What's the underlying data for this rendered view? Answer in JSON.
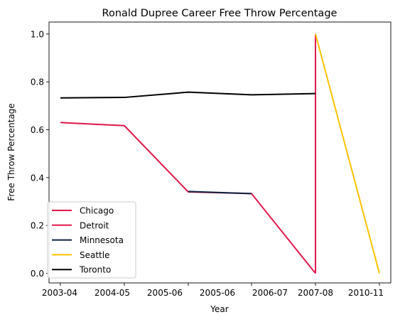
{
  "chart_data": {
    "type": "line",
    "title": "Ronald Dupree Career Free Throw Percentage",
    "xlabel": "Year",
    "ylabel": "Free Throw Percentage",
    "categories": [
      "2003-04",
      "2004-05",
      "2005-06",
      "2005-06",
      "2006-07",
      "2007-08",
      "2010-11"
    ],
    "ylim": [
      -0.04,
      1.05
    ],
    "yticks": [
      0.0,
      0.2,
      0.4,
      0.6,
      0.8,
      1.0
    ],
    "ytick_labels": [
      "0.0",
      "0.2",
      "0.4",
      "0.6",
      "0.8",
      "1.0"
    ],
    "grid": false,
    "legend_position": "lower-left",
    "series": [
      {
        "name": "Chicago",
        "color": "#E0174A",
        "points": [
          [
            0,
            0.63
          ],
          [
            1,
            0.617
          ],
          [
            2,
            0.34
          ],
          [
            3,
            0.333
          ],
          [
            4,
            0.0
          ]
        ]
      },
      {
        "name": "Detroit",
        "color": "#E0174A",
        "points": [
          [
            4,
            0.0
          ],
          [
            4,
            1.0
          ]
        ]
      },
      {
        "name": "Minnesota",
        "color": "#0C2340",
        "points": [
          [
            2,
            0.342
          ],
          [
            3,
            0.333
          ]
        ]
      },
      {
        "name": "Seattle",
        "color": "#FFC200",
        "points": [
          [
            4,
            1.0
          ],
          [
            5,
            0.0
          ]
        ]
      },
      {
        "name": "Toronto",
        "color": "#000000",
        "points": [
          [
            0,
            0.733
          ],
          [
            1,
            0.735
          ],
          [
            2,
            0.757
          ],
          [
            3,
            0.746
          ],
          [
            4,
            0.751
          ]
        ]
      }
    ]
  }
}
